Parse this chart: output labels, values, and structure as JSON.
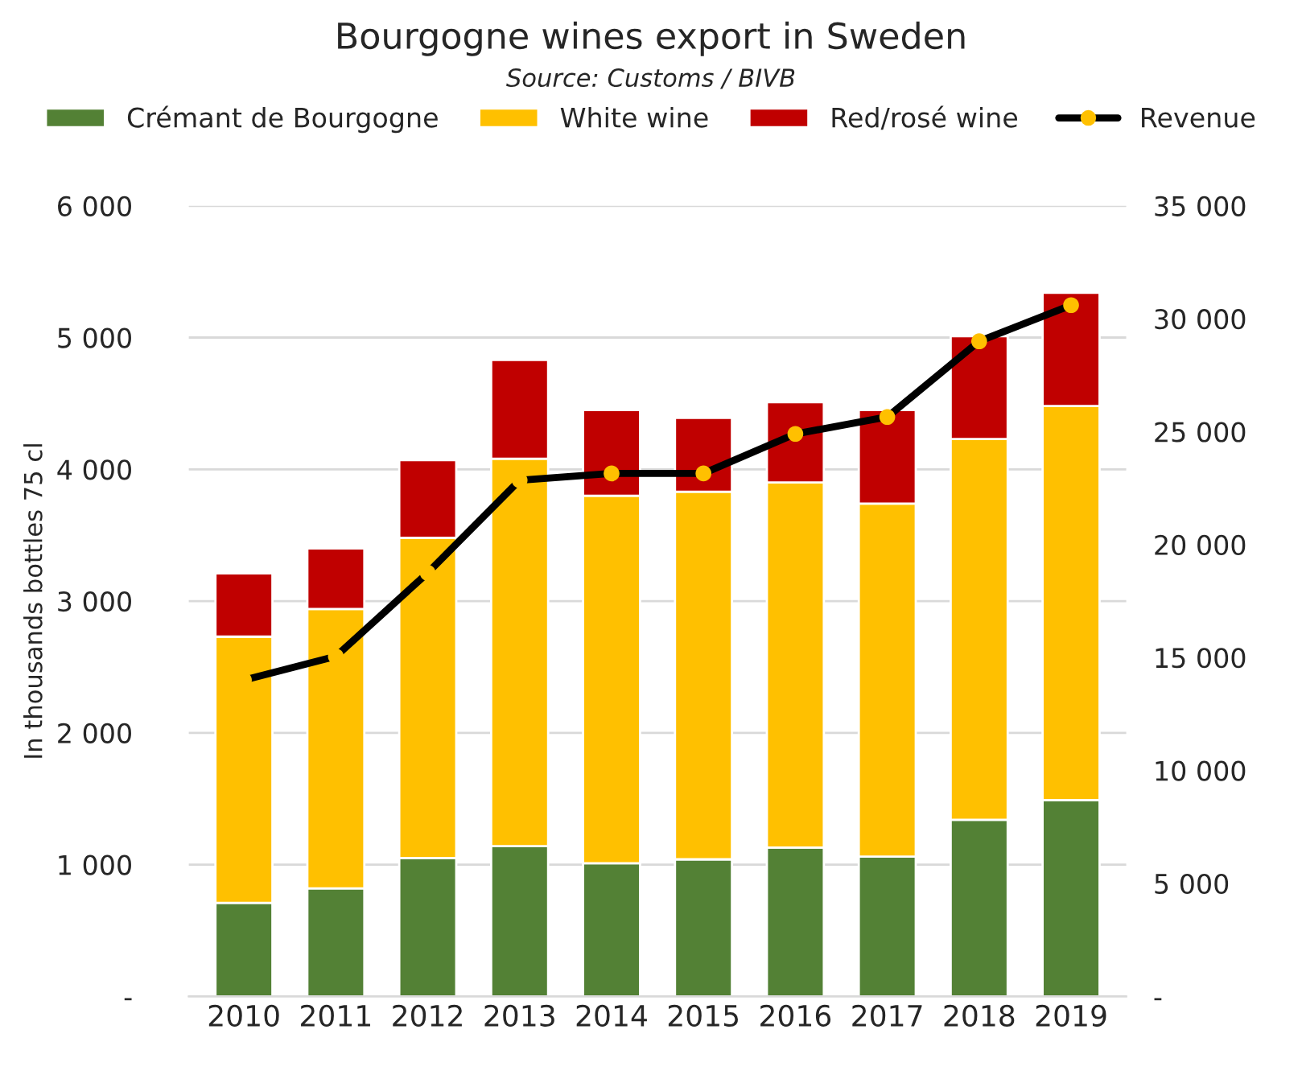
{
  "chart_data": {
    "type": "bar",
    "title": "Bourgogne wines export in Sweden",
    "subtitle": "Source: Customs / BIVB",
    "ylabel": "In thousands bottles 75 cl",
    "categories": [
      "2010",
      "2011",
      "2012",
      "2013",
      "2014",
      "2015",
      "2016",
      "2017",
      "2018",
      "2019"
    ],
    "stacked": true,
    "series": [
      {
        "name": "Crémant de Bourgogne",
        "color": "#538135",
        "values": [
          710,
          820,
          1050,
          1140,
          1010,
          1040,
          1130,
          1060,
          1340,
          1490
        ]
      },
      {
        "name": "White wine",
        "color": "#ffc000",
        "values": [
          2020,
          2120,
          2430,
          2940,
          2790,
          2790,
          2770,
          2680,
          2890,
          2990
        ]
      },
      {
        "name": "Red/rosé wine",
        "color": "#c00000",
        "values": [
          480,
          460,
          590,
          750,
          650,
          560,
          610,
          710,
          780,
          860
        ]
      },
      {
        "name": "Revenue",
        "type": "line",
        "axis": "y2",
        "color": "#000000",
        "marker": "circle",
        "colors": [
          "#ffc000",
          "#ffc000",
          "#ffc000",
          "#ffc000",
          "#ffc000",
          "#ffc000",
          "#ffc000",
          "#ffc000",
          "#ffc000",
          "#ffc000"
        ],
        "values": [
          14000,
          15050,
          18750,
          22850,
          23150,
          23150,
          24900,
          25650,
          29000,
          30600
        ]
      }
    ],
    "ylim": [
      0,
      6000
    ],
    "yticks": [
      {
        "value": 0,
        "label": "-"
      },
      {
        "value": 1000,
        "label": "1 000"
      },
      {
        "value": 2000,
        "label": "2 000"
      },
      {
        "value": 3000,
        "label": "3 000"
      },
      {
        "value": 4000,
        "label": "4 000"
      },
      {
        "value": 5000,
        "label": "5 000"
      },
      {
        "value": 6000,
        "label": "6 000"
      }
    ],
    "y2lim": [
      0,
      35000
    ],
    "y2ticks": [
      {
        "value": 0,
        "label": "-"
      },
      {
        "value": 5000,
        "label": "5 000"
      },
      {
        "value": 10000,
        "label": "10 000"
      },
      {
        "value": 15000,
        "label": "15 000"
      },
      {
        "value": 20000,
        "label": "20 000"
      },
      {
        "value": 25000,
        "label": "25 000"
      },
      {
        "value": 30000,
        "label": "30 000"
      },
      {
        "value": 35000,
        "label": "35 000"
      }
    ],
    "grid": "y",
    "legend": "top"
  }
}
